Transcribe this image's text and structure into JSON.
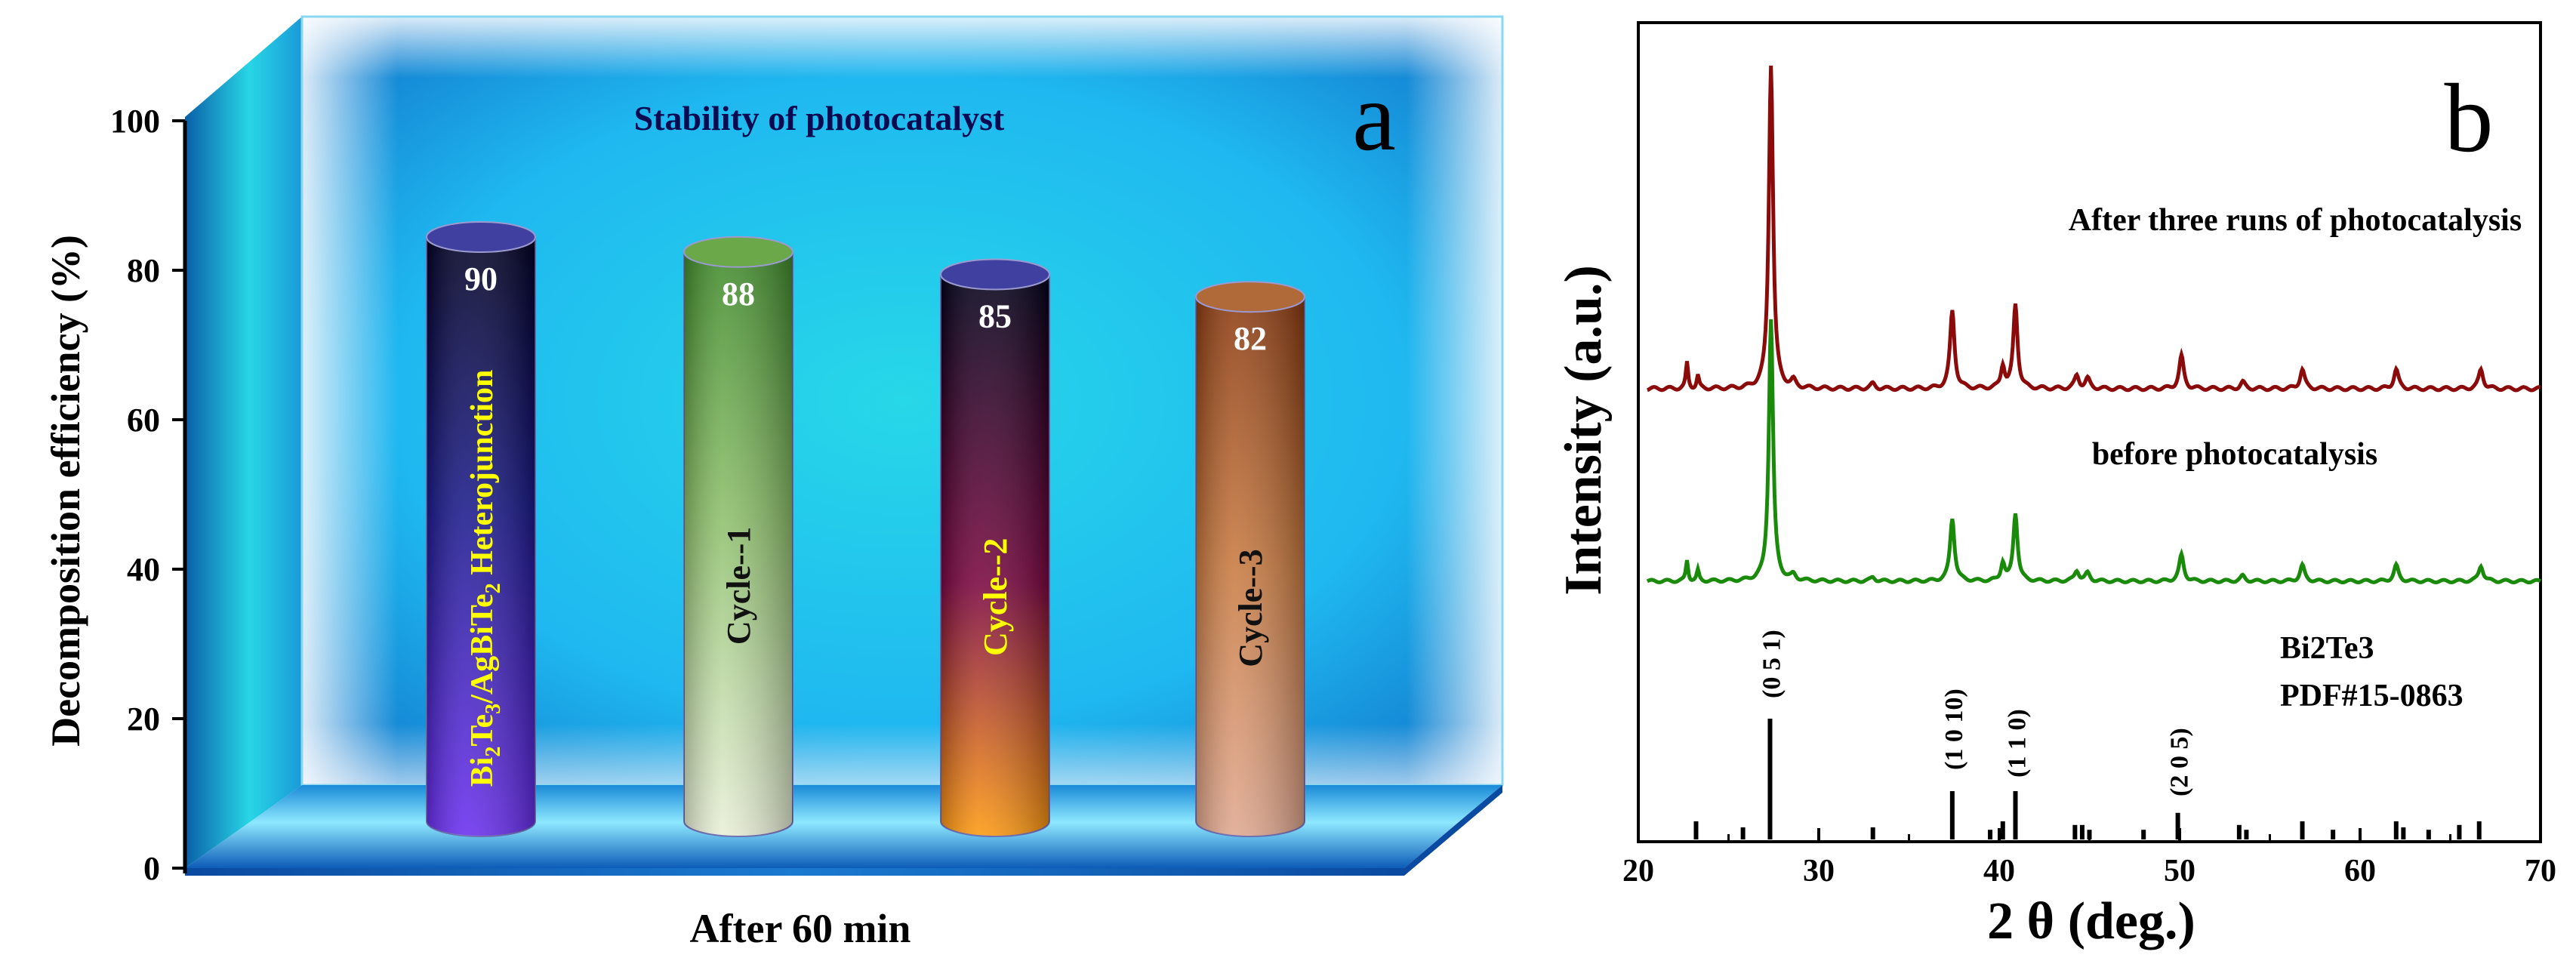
{
  "chart_data": [
    {
      "type": "bar",
      "panel_label": "a",
      "title": "Stability of photocatalyst",
      "xlabel": "After 60 min",
      "ylabel": "Decomposition efficiency (%)",
      "ylim": [
        0,
        100
      ],
      "yticks": [
        "0",
        "20",
        "40",
        "60",
        "80",
        "100"
      ],
      "categories": [
        {
          "prefix": "Bi",
          "sub1": "2",
          "mid1": "Te",
          "sub2": "3",
          "mid2": "/AgBiTe",
          "sub3": "2",
          "suffix": " Heterojunction"
        },
        "Cycle--1",
        "Cycle--2",
        "Cycle--3"
      ],
      "values": [
        90,
        88,
        85,
        82
      ],
      "value_labels": [
        "90",
        "88",
        "85",
        "82"
      ],
      "colors": {
        "bar1": [
          "#6a2ef0",
          "#1a1a8a",
          "#000022"
        ],
        "bar2": [
          "#3f8a2a",
          "#8cbf6a",
          "#e9f0d8"
        ],
        "bar3": [
          "#000018",
          "#7a0640",
          "#ff9a10"
        ],
        "bar4": [
          "#8a3a10",
          "#c87a40",
          "#e8b8a0"
        ],
        "category_label_text": [
          "#ffff00",
          "#111111",
          "#ffff00",
          "#111111"
        ],
        "backdrop": "#1fb8f0",
        "backdrop_center": "#27d8e8"
      }
    },
    {
      "type": "line",
      "panel_label": "b",
      "xlabel": "2 θ  (deg.)",
      "ylabel": "Intensity (a.u.)",
      "xlim": [
        20,
        70
      ],
      "xticks": [
        "20",
        "30",
        "40",
        "50",
        "60",
        "70"
      ],
      "reference": {
        "label_line1": "Bi2Te3",
        "label_line2": "PDF#15-0863",
        "sticks": [
          {
            "x": 23.2,
            "h": 0.15
          },
          {
            "x": 25.8,
            "h": 0.1
          },
          {
            "x": 27.3,
            "h": 1.0
          },
          {
            "x": 33.0,
            "h": 0.1
          },
          {
            "x": 37.4,
            "h": 0.4
          },
          {
            "x": 39.5,
            "h": 0.08
          },
          {
            "x": 40.2,
            "h": 0.15
          },
          {
            "x": 40.9,
            "h": 0.4
          },
          {
            "x": 44.2,
            "h": 0.12
          },
          {
            "x": 44.6,
            "h": 0.12
          },
          {
            "x": 45.0,
            "h": 0.08
          },
          {
            "x": 48.0,
            "h": 0.08
          },
          {
            "x": 49.9,
            "h": 0.22
          },
          {
            "x": 53.3,
            "h": 0.12
          },
          {
            "x": 53.7,
            "h": 0.08
          },
          {
            "x": 56.8,
            "h": 0.15
          },
          {
            "x": 58.5,
            "h": 0.08
          },
          {
            "x": 62.0,
            "h": 0.15
          },
          {
            "x": 62.4,
            "h": 0.1
          },
          {
            "x": 63.8,
            "h": 0.08
          },
          {
            "x": 65.5,
            "h": 0.12
          },
          {
            "x": 66.6,
            "h": 0.15
          }
        ],
        "hkl": [
          {
            "x": 27.3,
            "label": "(0 5 1)"
          },
          {
            "x": 37.4,
            "label": "(1 0 10)"
          },
          {
            "x": 40.9,
            "label": "(1 1 0)"
          },
          {
            "x": 49.9,
            "label": "(2 0 5)"
          }
        ]
      },
      "peaks": [
        {
          "x": 22.7,
          "h": 0.08,
          "w": 0.15
        },
        {
          "x": 23.3,
          "h": 0.04,
          "w": 0.15
        },
        {
          "x": 27.35,
          "h": 1.0,
          "w": 0.28
        },
        {
          "x": 28.6,
          "h": 0.02,
          "w": 0.3
        },
        {
          "x": 33.0,
          "h": 0.015,
          "w": 0.3
        },
        {
          "x": 37.4,
          "h": 0.24,
          "w": 0.3
        },
        {
          "x": 40.2,
          "h": 0.07,
          "w": 0.25
        },
        {
          "x": 40.9,
          "h": 0.26,
          "w": 0.28
        },
        {
          "x": 44.3,
          "h": 0.04,
          "w": 0.3
        },
        {
          "x": 44.9,
          "h": 0.03,
          "w": 0.3
        },
        {
          "x": 50.1,
          "h": 0.1,
          "w": 0.3
        },
        {
          "x": 53.5,
          "h": 0.02,
          "w": 0.3
        },
        {
          "x": 56.8,
          "h": 0.06,
          "w": 0.3
        },
        {
          "x": 62.0,
          "h": 0.06,
          "w": 0.3
        },
        {
          "x": 66.7,
          "h": 0.06,
          "w": 0.3
        }
      ],
      "series": [
        {
          "name": "After three runs of photocatalysis",
          "color": "#8b0a0a",
          "peak_height": 0.47
        },
        {
          "name": "before photocatalysis",
          "color": "#1a8a0a",
          "peak_height": 0.38
        }
      ]
    }
  ]
}
